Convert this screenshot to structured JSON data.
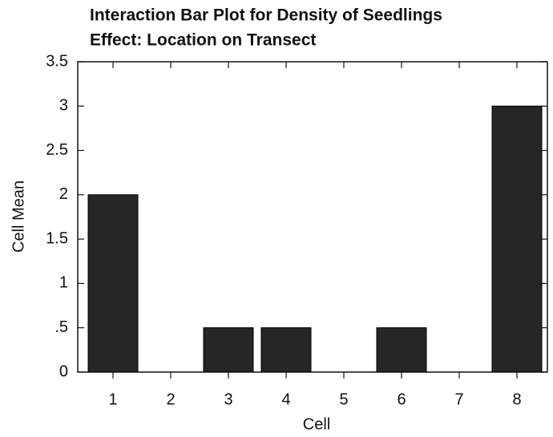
{
  "chart_data": {
    "type": "bar",
    "title": "Interaction Bar Plot for Density of Seedlings",
    "subtitle": "Effect: Location on Transect",
    "x_label": "Cell",
    "y_label": "Cell Mean",
    "categories": [
      "1",
      "2",
      "3",
      "4",
      "5",
      "6",
      "7",
      "8"
    ],
    "values": [
      2,
      0,
      0.5,
      0.5,
      0,
      0.5,
      0,
      3
    ],
    "color": "#262626",
    "ylim": [
      0,
      3.5
    ],
    "yticks": [
      0,
      {
        "value": 0.5,
        "label": ".5"
      },
      1,
      1.5,
      2,
      2.5,
      3,
      3.5
    ],
    "grid": false
  }
}
